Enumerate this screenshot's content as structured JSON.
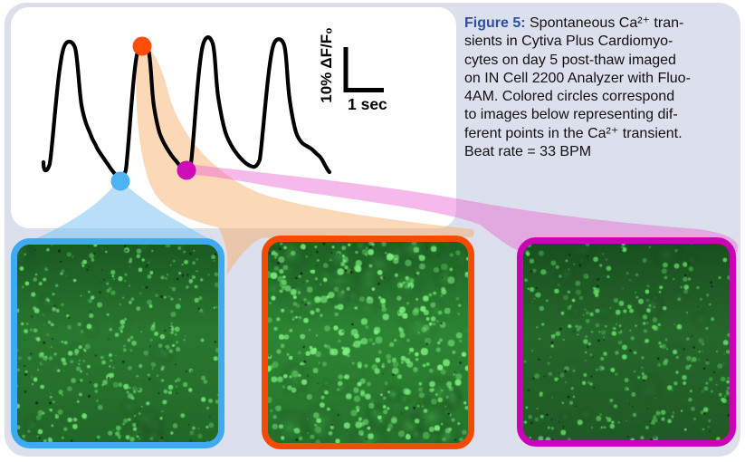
{
  "caption": {
    "label": "Figure 5:",
    "label_color": "#2c4f9e",
    "line1_rest": " Spontaneous Ca²⁺ tran-",
    "lines": [
      "sients in Cytiva Plus Cardiomyo-",
      "cytes on day 5 post-thaw imaged",
      "on IN Cell 2200 Analyzer with Fluo-",
      "4AM.  Colored circles correspond",
      "to images below representing dif-",
      "ferent points in the Ca²⁺ transient.",
      "Beat rate = 33 BPM"
    ],
    "beat_rate_bpm": 33
  },
  "scalebar": {
    "vertical_label": "10% ΔF/F₀",
    "horizontal_label": "1 sec"
  },
  "trace": {
    "description": "Spontaneous Ca2+ transient fluorescence trace, 4 beats",
    "color": "#000000"
  },
  "markers": [
    {
      "id": "peak",
      "color": "#fb4e0b",
      "position": "apex of second transient"
    },
    {
      "id": "trough",
      "color": "#4db1f2",
      "position": "trough before second transient"
    },
    {
      "id": "decay",
      "color": "#cd0cb5",
      "position": "trough after second transient"
    }
  ],
  "beams": {
    "trough": {
      "color": "rgba(125,195,242,0.55)"
    },
    "peak": {
      "color": "rgba(246,168,94,0.45)"
    },
    "decay": {
      "color": "rgba(233,100,210,0.45)"
    }
  },
  "images": [
    {
      "id": "trough-image",
      "border_color": "#3fa9f1",
      "fluorescence": "moderate",
      "texture": {
        "seed": 7,
        "base": "#2b7c32",
        "blobs": 26,
        "blob": "#3f9e46",
        "speckles": 340,
        "speck": "#6fe573",
        "bright": 0,
        "black": 70
      }
    },
    {
      "id": "peak-image",
      "border_color": "#f54a02",
      "fluorescence": "high",
      "texture": {
        "seed": 13,
        "base": "#2f8a36",
        "blobs": 72,
        "blob": "#4cc155",
        "speckles": 390,
        "speck": "#7df07f",
        "bright": 1,
        "black": 55
      }
    },
    {
      "id": "decay-image",
      "border_color": "#ca04b5",
      "fluorescence": "moderate",
      "texture": {
        "seed": 29,
        "base": "#276b2d",
        "blobs": 18,
        "blob": "#3a9342",
        "speckles": 310,
        "speck": "#63dd68",
        "bright": 0,
        "black": 65
      }
    }
  ],
  "palette": {
    "figure_background": "#dce0ec",
    "trace_panel_background": "#ffffff"
  }
}
